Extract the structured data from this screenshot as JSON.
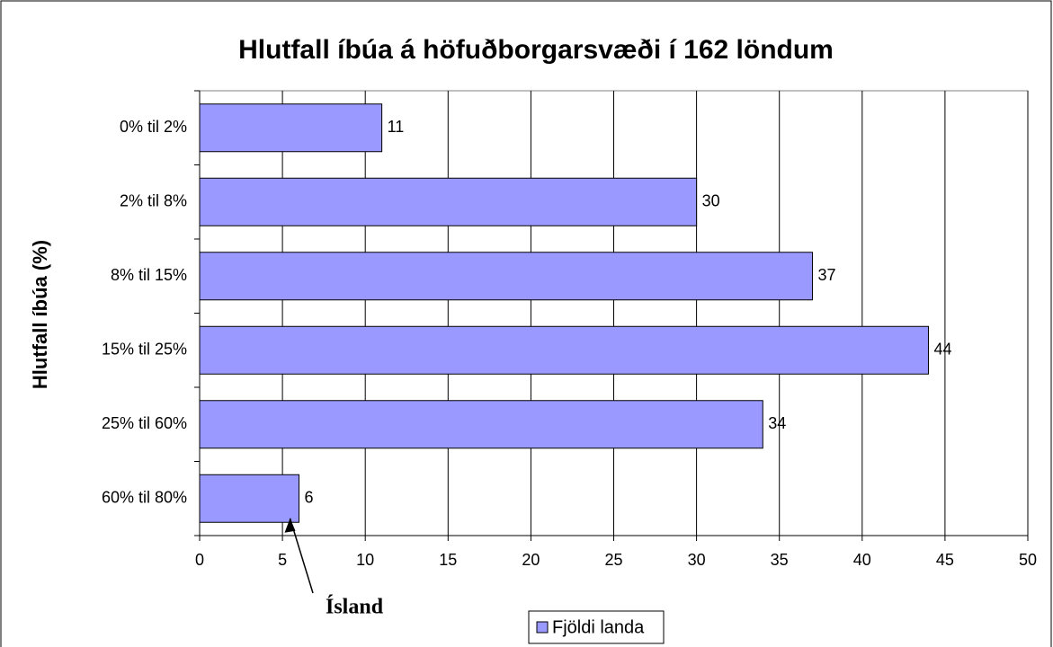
{
  "chart_data": {
    "type": "bar",
    "orientation": "horizontal",
    "title": "Hlutfall íbúa á höfuðborgarsvæði í 162 löndum",
    "y_label": "Hlutfall íbúa (%)",
    "categories": [
      "0% til 2%",
      "2% til 8%",
      "8% til 15%",
      "15% til 25%",
      "25% til 60%",
      "60% til 80%"
    ],
    "series": [
      {
        "name": "Fjöldi landa",
        "color": "#9999ff",
        "values": [
          11,
          30,
          37,
          44,
          34,
          6
        ]
      }
    ],
    "xlim": [
      0,
      50
    ],
    "xticks": [
      0,
      5,
      10,
      15,
      20,
      25,
      30,
      35,
      40,
      45,
      50
    ],
    "grid": true,
    "legend": "bottom",
    "annotations": [
      {
        "text": "Ísland",
        "category": 5
      }
    ]
  }
}
